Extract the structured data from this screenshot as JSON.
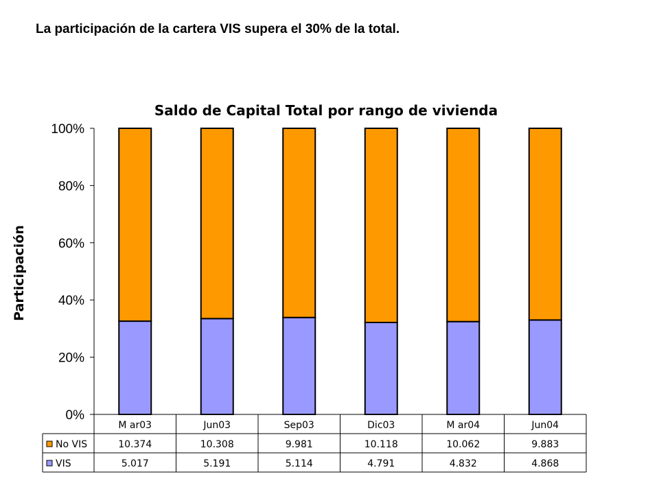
{
  "headline": "La participación de la cartera VIS supera el 30% de la total.",
  "chart_data": {
    "type": "bar",
    "stacked": "percent",
    "title": "Saldo de Capital Total por rango de vivienda",
    "ylabel": "Participación",
    "xlabel": "",
    "ylim": [
      0,
      100
    ],
    "yticks": [
      "0%",
      "20%",
      "40%",
      "60%",
      "80%",
      "100%"
    ],
    "grid": false,
    "legend": "data-table",
    "categories": [
      "M ar03",
      "Jun03",
      "Sep03",
      "Dic03",
      "M ar04",
      "Jun04"
    ],
    "series": [
      {
        "name": "VIS",
        "color": "#9999ff",
        "values": [
          5.017,
          5.191,
          5.114,
          4.791,
          4.832,
          4.868
        ],
        "labels": [
          "5.017",
          "5.191",
          "5.114",
          "4.791",
          "4.832",
          "4.868"
        ]
      },
      {
        "name": "No VIS",
        "color": "#ff9900",
        "values": [
          10.374,
          10.308,
          9.981,
          10.118,
          10.062,
          9.883
        ],
        "labels": [
          "10.374",
          "10.308",
          "9.981",
          "10.118",
          "10.062",
          "9.883"
        ]
      }
    ]
  }
}
